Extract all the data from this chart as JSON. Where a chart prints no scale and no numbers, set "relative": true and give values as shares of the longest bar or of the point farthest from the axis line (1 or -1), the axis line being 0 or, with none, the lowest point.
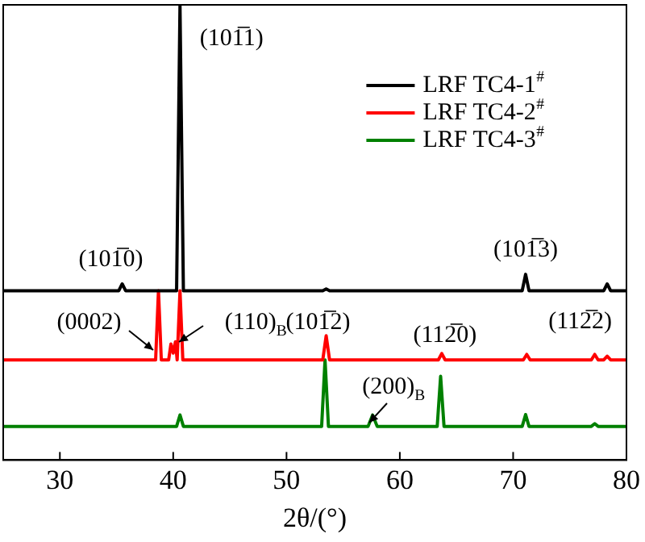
{
  "chart_data": {
    "type": "line",
    "relative": true,
    "xlabel": "2θ/(°)",
    "xlim": [
      25,
      80
    ],
    "xticks": [
      30,
      40,
      50,
      60,
      70,
      80
    ],
    "legend": "top right",
    "grid": false,
    "marker": "none",
    "line_style": "solid",
    "series": [
      {
        "name": "LRF TC4-1$^{#}$",
        "color": "#000000",
        "x": [
          25,
          35.2,
          35.5,
          35.8,
          40.3,
          40.6,
          40.9,
          53.2,
          53.5,
          53.8,
          70.8,
          71.1,
          71.4,
          78.0,
          78.3,
          78.6,
          80
        ],
        "values": [
          0.372,
          0.372,
          0.387,
          0.372,
          0.372,
          1.0,
          0.372,
          0.372,
          0.376,
          0.372,
          0.372,
          0.408,
          0.372,
          0.372,
          0.387,
          0.372,
          0.372
        ]
      },
      {
        "name": "LRF TC4-2$^{#}$",
        "color": "#ff0000",
        "x": [
          25,
          38.45,
          38.7,
          38.95,
          39.6,
          39.8,
          40.0,
          40.2,
          40.35,
          40.6,
          40.85,
          53.2,
          53.5,
          53.8,
          63.4,
          63.7,
          64.0,
          70.9,
          71.2,
          71.5,
          76.9,
          77.2,
          77.5,
          78.0,
          78.3,
          78.6,
          80
        ],
        "values": [
          0.22,
          0.22,
          0.372,
          0.22,
          0.22,
          0.255,
          0.235,
          0.26,
          0.22,
          0.372,
          0.22,
          0.22,
          0.273,
          0.22,
          0.22,
          0.234,
          0.22,
          0.22,
          0.232,
          0.22,
          0.22,
          0.232,
          0.22,
          0.22,
          0.228,
          0.22,
          0.22
        ]
      },
      {
        "name": "LRF TC4-3$^{#}$",
        "color": "#008000",
        "x": [
          25,
          40.3,
          40.6,
          40.9,
          53.1,
          53.4,
          53.7,
          57.2,
          57.6,
          58.0,
          63.3,
          63.6,
          63.9,
          70.8,
          71.1,
          71.4,
          76.9,
          77.2,
          77.5,
          80
        ],
        "values": [
          0.074,
          0.074,
          0.099,
          0.074,
          0.074,
          0.22,
          0.074,
          0.074,
          0.099,
          0.074,
          0.074,
          0.184,
          0.074,
          0.074,
          0.1,
          0.074,
          0.074,
          0.08,
          0.074,
          0.074
        ]
      }
    ],
    "annotations": [
      {
        "text": "(101̅1)",
        "x": 40.6,
        "y": 1.0
      },
      {
        "text": "(101̅0)",
        "x": 35.5,
        "y": 0.387
      },
      {
        "text": "(101̅3)",
        "x": 71.1,
        "y": 0.408
      },
      {
        "text": "(0002)",
        "x": 38.7,
        "y": 0.372
      },
      {
        "text": "(110)$_{B}$",
        "x": 40.6,
        "y": 0.372
      },
      {
        "text": "(101̅2)",
        "x": 53.5,
        "y": 0.273
      },
      {
        "text": "(112̅0)",
        "x": 63.7,
        "y": 0.234
      },
      {
        "text": "(112̅2)",
        "x": 77.2,
        "y": 0.232
      },
      {
        "text": "(200)$_{B}$",
        "x": 57.6,
        "y": 0.099
      }
    ]
  }
}
